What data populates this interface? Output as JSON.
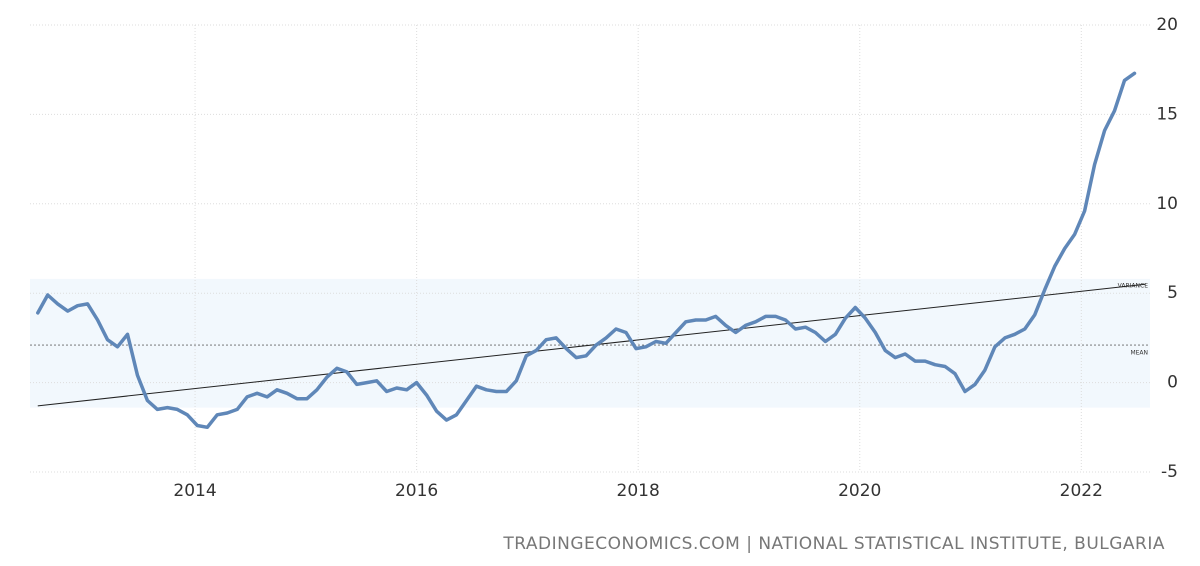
{
  "chart_data": {
    "type": "line",
    "source": "TRADINGECONOMICS.COM | NATIONAL STATISTICAL INSTITUTE, BULGARIA",
    "x": [
      2012.58,
      2012.67,
      2012.76,
      2012.85,
      2012.94,
      2013.03,
      2013.12,
      2013.21,
      2013.3,
      2013.39,
      2013.48,
      2013.57,
      2013.66,
      2013.75,
      2013.84,
      2013.93,
      2014.02,
      2014.11,
      2014.2,
      2014.29,
      2014.38,
      2014.47,
      2014.56,
      2014.65,
      2014.74,
      2014.83,
      2014.92,
      2015.01,
      2015.1,
      2015.19,
      2015.28,
      2015.37,
      2015.46,
      2015.55,
      2015.64,
      2015.73,
      2015.82,
      2015.91,
      2016.0,
      2016.09,
      2016.18,
      2016.27,
      2016.36,
      2016.45,
      2016.54,
      2016.63,
      2016.72,
      2016.81,
      2016.9,
      2016.99,
      2017.08,
      2017.17,
      2017.26,
      2017.35,
      2017.44,
      2017.53,
      2017.62,
      2017.71,
      2017.8,
      2017.89,
      2017.98,
      2018.07,
      2018.16,
      2018.25,
      2018.34,
      2018.43,
      2018.52,
      2018.61,
      2018.7,
      2018.79,
      2018.88,
      2018.97,
      2019.06,
      2019.15,
      2019.24,
      2019.33,
      2019.42,
      2019.51,
      2019.6,
      2019.69,
      2019.78,
      2019.87,
      2019.96,
      2020.05,
      2020.14,
      2020.23,
      2020.32,
      2020.41,
      2020.5,
      2020.59,
      2020.68,
      2020.77,
      2020.86,
      2020.95,
      2021.04,
      2021.13,
      2021.22,
      2021.31,
      2021.4,
      2021.49,
      2021.58,
      2021.67,
      2021.76,
      2021.85,
      2021.94,
      2022.03,
      2022.12,
      2022.21,
      2022.3,
      2022.39,
      2022.48
    ],
    "series": [
      {
        "color": "#5f87b8",
        "values": [
          3.9,
          4.9,
          4.4,
          4.0,
          4.3,
          4.4,
          3.5,
          2.4,
          2.0,
          2.7,
          0.4,
          -1.0,
          -1.5,
          -1.4,
          -1.5,
          -1.8,
          -2.4,
          -2.5,
          -1.8,
          -1.7,
          -1.5,
          -0.8,
          -0.6,
          -0.8,
          -0.4,
          -0.6,
          -0.9,
          -0.9,
          -0.4,
          0.3,
          0.8,
          0.6,
          -0.1,
          0.0,
          0.1,
          -0.5,
          -0.3,
          -0.4,
          0.0,
          -0.7,
          -1.6,
          -2.1,
          -1.8,
          -1.0,
          -0.2,
          -0.4,
          -0.5,
          -0.5,
          0.1,
          1.5,
          1.8,
          2.4,
          2.5,
          1.9,
          1.4,
          1.5,
          2.1,
          2.5,
          3.0,
          2.8,
          1.9,
          2.0,
          2.3,
          2.2,
          2.8,
          3.4,
          3.5,
          3.5,
          3.7,
          3.2,
          2.8,
          3.2,
          3.4,
          3.7,
          3.7,
          3.5,
          3.0,
          3.1,
          2.8,
          2.3,
          2.7,
          3.6,
          4.2,
          3.6,
          2.8,
          1.8,
          1.4,
          1.6,
          1.2,
          1.2,
          1.0,
          0.9,
          0.5,
          -0.5,
          -0.1,
          0.7,
          2.0,
          2.5,
          2.7,
          3.0,
          3.8,
          5.2,
          6.5,
          7.5,
          8.3,
          9.6,
          12.2,
          14.1,
          15.2,
          16.9,
          17.3
        ]
      }
    ],
    "mean": {
      "label": "MEAN",
      "value": 2.1
    },
    "variance": {
      "label": "VARIANCE",
      "range": [
        -1.4,
        5.8
      ]
    },
    "trend": {
      "x": [
        2012.58,
        2022.58
      ],
      "values": [
        -1.3,
        5.5
      ]
    },
    "xlim": [
      2012.51,
      2022.62
    ],
    "xticks": [
      2014,
      2016,
      2018,
      2020,
      2022
    ],
    "ylim": [
      -5,
      20
    ],
    "yticks": [
      -5,
      0,
      5,
      10,
      15,
      20
    ],
    "grid": true
  }
}
